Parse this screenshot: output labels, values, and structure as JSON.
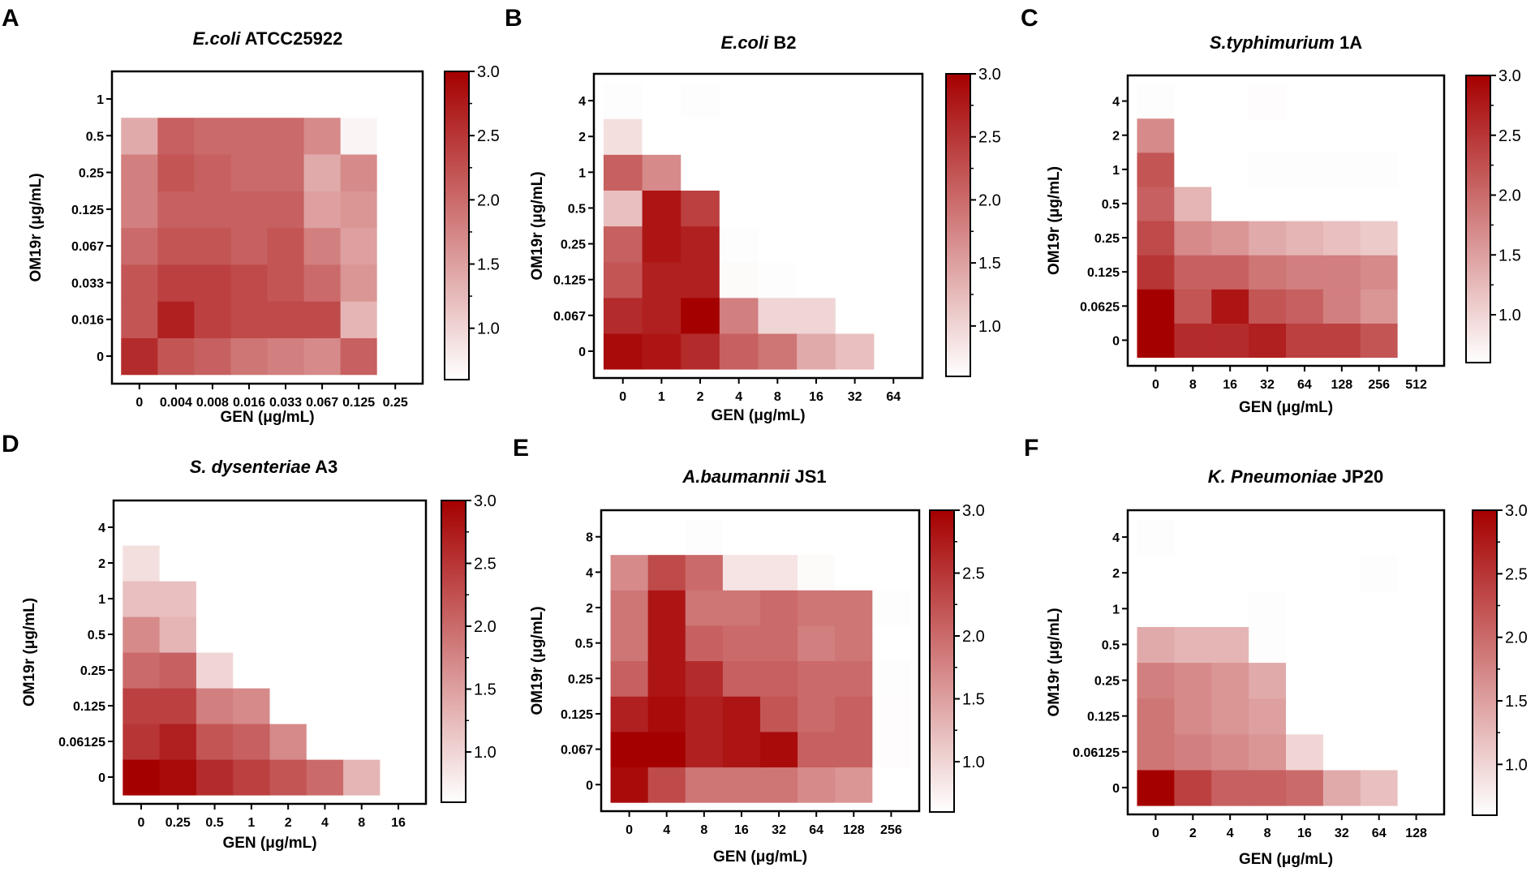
{
  "figure": {
    "colorbar_colors": [
      "#ffffff",
      "#a50000"
    ]
  },
  "chart_data": [
    {
      "type": "heatmap",
      "letter": "A",
      "title": {
        "italic": "E.coli",
        "normal": " ATCC25922"
      },
      "xlabel": "GEN (μg/mL)",
      "ylabel": "OM19r (μg/mL)",
      "x_categories": [
        "0",
        "0.004",
        "0.008",
        "0.016",
        "0.033",
        "0.067",
        "0.125",
        "0.25"
      ],
      "y_categories": [
        "0",
        "0.016",
        "0.033",
        "0.067",
        "0.125",
        "0.25",
        "0.5",
        "1"
      ],
      "values": [
        [
          2.6,
          2.2,
          2.1,
          1.9,
          1.8,
          1.7,
          2.1,
          0.6
        ],
        [
          2.2,
          2.7,
          2.4,
          2.3,
          2.3,
          2.3,
          1.3,
          0.6
        ],
        [
          2.2,
          2.4,
          2.4,
          2.3,
          2.2,
          2.0,
          1.6,
          0.6
        ],
        [
          2.0,
          2.2,
          2.2,
          2.1,
          2.2,
          1.8,
          1.5,
          0.6
        ],
        [
          1.8,
          2.1,
          2.1,
          2.1,
          2.1,
          1.5,
          1.6,
          0.6
        ],
        [
          1.8,
          2.2,
          2.1,
          2.0,
          2.0,
          1.4,
          1.7,
          0.6
        ],
        [
          1.4,
          2.1,
          2.0,
          2.0,
          2.0,
          1.7,
          0.7,
          0.6
        ],
        [
          0.6,
          0.6,
          0.6,
          0.6,
          0.6,
          0.6,
          0.6,
          0.6
        ]
      ],
      "colorbar": {
        "ticks": [
          "3.0",
          "2.5",
          "2.0",
          "1.5",
          "1.0"
        ],
        "min": 0.6,
        "max": 3.0
      }
    },
    {
      "type": "heatmap",
      "letter": "B",
      "title": {
        "italic": "E.coli",
        "normal": " B2"
      },
      "xlabel": "GEN  (μg/mL)",
      "ylabel": "OM19r (μg/mL)",
      "x_categories": [
        "0",
        "1",
        "2",
        "4",
        "8",
        "16",
        "32",
        "64"
      ],
      "y_categories": [
        "0",
        "0.067",
        "0.125",
        "0.25",
        "0.5",
        "1",
        "2",
        "4"
      ],
      "values": [
        [
          2.9,
          2.8,
          2.6,
          2.1,
          1.9,
          1.4,
          1.2,
          0.6
        ],
        [
          2.6,
          2.7,
          3.0,
          1.8,
          1.0,
          1.0,
          0.6,
          0.6
        ],
        [
          2.2,
          2.7,
          2.7,
          0.65,
          0.62,
          0.6,
          0.6,
          0.6
        ],
        [
          2.1,
          2.8,
          2.7,
          0.62,
          0.6,
          0.6,
          0.6,
          0.6
        ],
        [
          1.2,
          2.8,
          2.4,
          0.6,
          0.6,
          0.6,
          0.6,
          0.6
        ],
        [
          2.1,
          1.7,
          0.6,
          0.6,
          0.6,
          0.6,
          0.6,
          0.6
        ],
        [
          0.9,
          0.6,
          0.6,
          0.6,
          0.6,
          0.6,
          0.6,
          0.6
        ],
        [
          0.62,
          0.6,
          0.62,
          0.6,
          0.6,
          0.6,
          0.6,
          0.6
        ]
      ],
      "colorbar": {
        "ticks": [
          "3.0",
          "2.5",
          "2.0",
          "1.5",
          "1.0"
        ],
        "min": 0.6,
        "max": 3.0
      }
    },
    {
      "type": "heatmap",
      "letter": "C",
      "title": {
        "italic": "S.typhimurium",
        "normal": " 1A"
      },
      "xlabel": "GEN (μg/mL)",
      "ylabel": "OM19r (μg/mL)",
      "x_categories": [
        "0",
        "8",
        "16",
        "32",
        "64",
        "128",
        "256",
        "512"
      ],
      "y_categories": [
        "0",
        "0.0625",
        "0.125",
        "0.25",
        "0.5",
        "1",
        "2",
        "4"
      ],
      "values": [
        [
          3.0,
          2.6,
          2.6,
          2.7,
          2.4,
          2.4,
          2.2,
          0.6
        ],
        [
          3.0,
          2.2,
          2.8,
          2.2,
          2.1,
          1.8,
          1.6,
          0.6
        ],
        [
          2.5,
          2.1,
          2.1,
          1.9,
          1.8,
          1.8,
          1.7,
          0.6
        ],
        [
          2.3,
          1.7,
          1.6,
          1.4,
          1.3,
          1.2,
          1.1,
          0.6
        ],
        [
          2.1,
          1.3,
          0.6,
          0.6,
          0.6,
          0.6,
          0.6,
          0.6
        ],
        [
          2.2,
          0.6,
          0.6,
          0.62,
          0.62,
          0.62,
          0.62,
          0.6
        ],
        [
          1.7,
          0.6,
          0.6,
          0.6,
          0.6,
          0.6,
          0.6,
          0.6
        ],
        [
          0.62,
          0.6,
          0.6,
          0.63,
          0.6,
          0.6,
          0.6,
          0.6
        ]
      ],
      "colorbar": {
        "ticks": [
          "3.0",
          "2.5",
          "2.0",
          "1.5",
          "1.0"
        ],
        "min": 0.6,
        "max": 3.0
      }
    },
    {
      "type": "heatmap",
      "letter": "D",
      "title": {
        "italic": "S. dysenteriae",
        "normal": " A3"
      },
      "xlabel": "GEN (μg/mL)",
      "ylabel": "OM19r  (μg/mL)",
      "x_categories": [
        "0",
        "0.25",
        "0.5",
        "1",
        "2",
        "4",
        "8",
        "16"
      ],
      "y_categories": [
        "0",
        "0.06125",
        "0.125",
        "0.25",
        "0.5",
        "1",
        "2",
        "4"
      ],
      "values": [
        [
          3.0,
          2.9,
          2.6,
          2.4,
          2.2,
          2.0,
          1.3,
          0.6
        ],
        [
          2.5,
          2.7,
          2.2,
          2.1,
          1.7,
          0.6,
          0.6,
          0.6
        ],
        [
          2.4,
          2.4,
          1.8,
          1.7,
          0.6,
          0.6,
          0.6,
          0.6
        ],
        [
          2.0,
          2.1,
          1.0,
          0.6,
          0.6,
          0.6,
          0.6,
          0.6
        ],
        [
          1.7,
          1.3,
          0.6,
          0.6,
          0.6,
          0.6,
          0.6,
          0.6
        ],
        [
          1.2,
          1.2,
          0.6,
          0.6,
          0.6,
          0.6,
          0.6,
          0.6
        ],
        [
          0.9,
          0.6,
          0.6,
          0.6,
          0.6,
          0.6,
          0.6,
          0.6
        ],
        [
          0.6,
          0.6,
          0.6,
          0.6,
          0.6,
          0.6,
          0.6,
          0.6
        ]
      ],
      "colorbar": {
        "ticks": [
          "3.0",
          "2.5",
          "2.0",
          "1.5",
          "1.0"
        ],
        "min": 0.6,
        "max": 3.0
      }
    },
    {
      "type": "heatmap",
      "letter": "E",
      "title": {
        "italic": "A.baumannii",
        "normal": " JS1"
      },
      "xlabel": "GEN (μg/mL)",
      "ylabel": "OM19r  (μg/mL)",
      "x_categories": [
        "0",
        "4",
        "8",
        "16",
        "32",
        "64",
        "128",
        "256"
      ],
      "y_categories": [
        "0",
        "0.067",
        "0.125",
        "0.25",
        "0.5",
        "2",
        "4",
        "8"
      ],
      "values": [
        [
          2.9,
          2.3,
          1.9,
          1.9,
          1.9,
          1.7,
          1.6,
          0.6
        ],
        [
          3.0,
          3.0,
          2.7,
          2.8,
          2.9,
          2.1,
          2.1,
          0.63
        ],
        [
          2.7,
          2.9,
          2.7,
          2.8,
          2.2,
          2.0,
          2.1,
          0.63
        ],
        [
          2.1,
          2.8,
          2.6,
          2.1,
          2.1,
          2.0,
          2.0,
          0.62
        ],
        [
          1.9,
          2.8,
          2.1,
          2.0,
          2.0,
          1.8,
          1.9,
          0.6
        ],
        [
          1.9,
          2.8,
          1.9,
          1.9,
          2.0,
          1.9,
          1.9,
          0.62
        ],
        [
          1.7,
          2.3,
          2.0,
          0.85,
          0.85,
          0.65,
          0.6,
          0.6
        ],
        [
          0.6,
          0.6,
          0.62,
          0.6,
          0.6,
          0.6,
          0.6,
          0.6
        ]
      ],
      "colorbar": {
        "ticks": [
          "3.0",
          "2.5",
          "2.0",
          "1.5",
          "1.0"
        ],
        "min": 0.6,
        "max": 3.0
      }
    },
    {
      "type": "heatmap",
      "letter": "F",
      "title": {
        "italic": "K. Pneumoniae",
        "normal": " JP20"
      },
      "xlabel": "GEN  (μg/mL)",
      "ylabel": "OM19r (μg/mL)",
      "x_categories": [
        "0",
        "2",
        "4",
        "8",
        "16",
        "32",
        "64",
        "128"
      ],
      "y_categories": [
        "0",
        "0.06125",
        "0.125",
        "0.25",
        "0.5",
        "1",
        "2",
        "4"
      ],
      "values": [
        [
          3.0,
          2.4,
          2.1,
          2.1,
          2.0,
          1.4,
          1.2,
          0.6
        ],
        [
          1.9,
          1.8,
          1.7,
          1.6,
          1.0,
          0.6,
          0.6,
          0.6
        ],
        [
          1.9,
          1.7,
          1.6,
          1.5,
          0.6,
          0.6,
          0.6,
          0.6
        ],
        [
          1.8,
          1.7,
          1.6,
          1.4,
          0.6,
          0.6,
          0.6,
          0.6
        ],
        [
          1.4,
          1.3,
          1.3,
          0.62,
          0.6,
          0.6,
          0.6,
          0.6
        ],
        [
          0.6,
          0.6,
          0.6,
          0.62,
          0.6,
          0.6,
          0.6,
          0.6
        ],
        [
          0.6,
          0.6,
          0.6,
          0.6,
          0.6,
          0.6,
          0.62,
          0.6
        ],
        [
          0.62,
          0.6,
          0.6,
          0.6,
          0.6,
          0.6,
          0.6,
          0.6
        ]
      ],
      "colorbar": {
        "ticks": [
          "3.0",
          "2.5",
          "2.0",
          "1.5",
          "1.0"
        ],
        "min": 0.6,
        "max": 3.0
      }
    }
  ]
}
